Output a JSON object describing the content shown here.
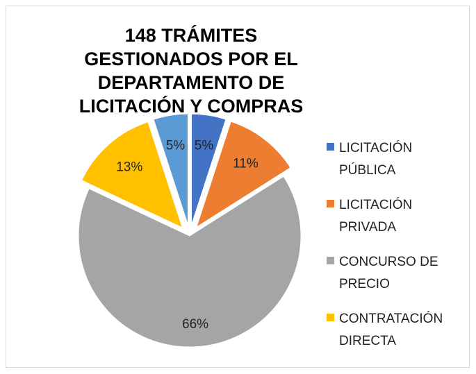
{
  "chart_data": {
    "type": "pie",
    "title": "148 TRÁMITES GESTIONADOS POR EL DEPARTAMENTO DE LICITACIÓN Y COMPRAS",
    "categories": [
      "LICITACIÓN PÚBLICA",
      "LICITACIÓN PRIVADA",
      "CONCURSO DE PRECIO",
      "CONTRATACIÓN DIRECTA",
      null
    ],
    "values": [
      5,
      11,
      66,
      13,
      5
    ],
    "value_labels": [
      "5%",
      "11%",
      "66%",
      "13%",
      "5%"
    ],
    "colors": [
      "#4472c4",
      "#ed7d31",
      "#a5a5a5",
      "#ffc000",
      "#5b9bd5"
    ],
    "legend": "right"
  }
}
